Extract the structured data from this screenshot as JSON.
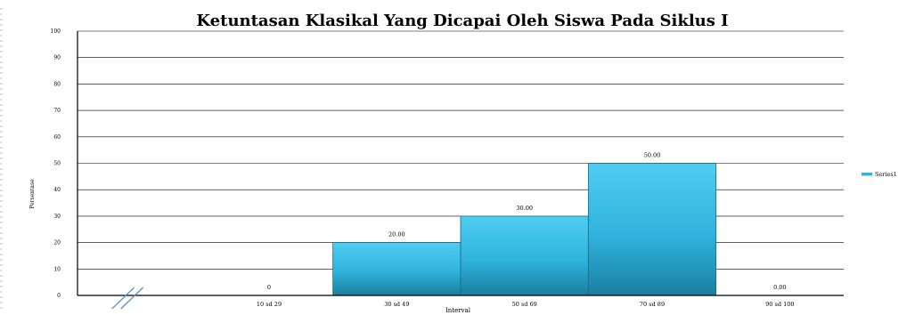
{
  "chart_data": {
    "type": "bar",
    "title": "Ketuntasan Klasikal Yang  Dicapai Oleh Siswa Pada Siklus I",
    "xlabel": "Interval",
    "ylabel": "Persentase",
    "categories": [
      "",
      "10 sd 29",
      "30 sd 49",
      "50 sd 69",
      "70 sd 89",
      "90 sd 100"
    ],
    "series": [
      {
        "name": "Series1",
        "values": [
          null,
          0,
          20,
          30,
          50,
          0
        ],
        "data_labels": [
          "",
          "0",
          "20.00",
          "30.00",
          "50.00",
          "0.00"
        ]
      }
    ],
    "ylim": [
      0,
      100
    ],
    "yticks": [
      "0",
      "10",
      "20",
      "30",
      "40",
      "50",
      "60",
      "70",
      "80",
      "90",
      "100"
    ],
    "grid": true,
    "legend_position": "right",
    "colors": {
      "bar_top": "#4fcdf0",
      "bar_mid": "#2fb3dd",
      "bar_bottom": "#1a7fa0",
      "bar_edge": "#1a6985",
      "gridline": "#000000",
      "axis_break": "#5d8fc0"
    }
  }
}
